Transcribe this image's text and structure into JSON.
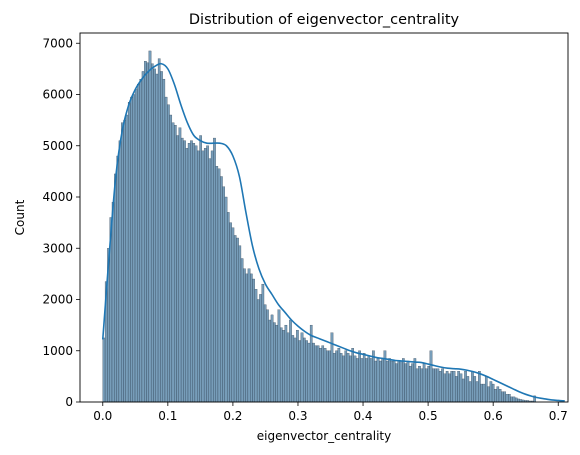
{
  "chart_data": {
    "type": "bar",
    "subtype": "histogram-with-kde",
    "title": "Distribution of eigenvector_centrality",
    "xlabel": "eigenvector_centrality",
    "ylabel": "Count",
    "xlim": [
      -0.035,
      0.715
    ],
    "ylim": [
      0,
      7200
    ],
    "xticks": [
      0.0,
      0.1,
      0.2,
      0.3,
      0.4,
      0.5,
      0.6,
      0.7
    ],
    "xtick_labels": [
      "0.0",
      "0.1",
      "0.2",
      "0.3",
      "0.4",
      "0.5",
      "0.6",
      "0.7"
    ],
    "yticks": [
      0,
      1000,
      2000,
      3000,
      4000,
      5000,
      6000,
      7000
    ],
    "ytick_labels": [
      "0",
      "1000",
      "2000",
      "3000",
      "4000",
      "5000",
      "6000",
      "7000"
    ],
    "grid": false,
    "bin_start": 0.0,
    "bin_width": 0.00354,
    "bar_color": "#5f8cad",
    "bar_edge_color": "#2c3e50",
    "kde_color": "#1f77b4",
    "counts": [
      1250,
      2350,
      3000,
      3600,
      3900,
      4450,
      4800,
      5100,
      5450,
      5500,
      5600,
      5850,
      5950,
      6000,
      6100,
      6200,
      6300,
      6450,
      6650,
      6620,
      6850,
      6600,
      6500,
      6400,
      6700,
      6450,
      6300,
      5950,
      5800,
      5600,
      5450,
      5400,
      5200,
      5350,
      5150,
      5100,
      4950,
      5050,
      5100,
      5050,
      5000,
      4900,
      5200,
      4900,
      4950,
      5000,
      4750,
      4900,
      5150,
      4600,
      4550,
      4400,
      4200,
      4000,
      3700,
      3500,
      3400,
      3250,
      3200,
      3050,
      2800,
      2600,
      2500,
      2600,
      2500,
      2400,
      2200,
      2000,
      2100,
      2300,
      1900,
      1800,
      1600,
      1700,
      1550,
      1500,
      1800,
      1450,
      1400,
      1500,
      1350,
      1600,
      1300,
      1250,
      1400,
      1200,
      1350,
      1250,
      1200,
      1150,
      1500,
      1150,
      1100,
      1100,
      1050,
      1100,
      1050,
      1000,
      1000,
      1350,
      950,
      1000,
      1050,
      950,
      900,
      1000,
      950,
      900,
      1050,
      900,
      850,
      1000,
      850,
      950,
      850,
      900,
      850,
      1000,
      800,
      850,
      800,
      850,
      1000,
      800,
      850,
      800,
      800,
      750,
      800,
      800,
      850,
      750,
      800,
      700,
      750,
      850,
      650,
      700,
      650,
      750,
      650,
      700,
      1000,
      650,
      650,
      650,
      600,
      650,
      550,
      600,
      550,
      600,
      600,
      500,
      600,
      550,
      450,
      600,
      500,
      400,
      600,
      500,
      400,
      600,
      350,
      350,
      500,
      300,
      400,
      350,
      250,
      300,
      250,
      200,
      200,
      150,
      150,
      100,
      100,
      80,
      60,
      50,
      40,
      30,
      30,
      20,
      20,
      120
    ],
    "kde": {
      "x": [
        0.0,
        0.01,
        0.02,
        0.03,
        0.04,
        0.05,
        0.06,
        0.07,
        0.08,
        0.09,
        0.1,
        0.11,
        0.12,
        0.13,
        0.14,
        0.15,
        0.16,
        0.17,
        0.18,
        0.19,
        0.2,
        0.21,
        0.22,
        0.23,
        0.24,
        0.25,
        0.26,
        0.27,
        0.28,
        0.29,
        0.3,
        0.31,
        0.32,
        0.33,
        0.34,
        0.35,
        0.36,
        0.37,
        0.38,
        0.39,
        0.4,
        0.41,
        0.42,
        0.43,
        0.44,
        0.45,
        0.46,
        0.47,
        0.48,
        0.49,
        0.5,
        0.51,
        0.52,
        0.53,
        0.54,
        0.55,
        0.56,
        0.57,
        0.58,
        0.59,
        0.6,
        0.61,
        0.62,
        0.63,
        0.64,
        0.65,
        0.66,
        0.67,
        0.68,
        0.69,
        0.7,
        0.71
      ],
      "y": [
        1220,
        2900,
        4400,
        5300,
        5800,
        6100,
        6300,
        6450,
        6550,
        6600,
        6500,
        6200,
        5800,
        5450,
        5200,
        5100,
        5050,
        5050,
        5050,
        5000,
        4800,
        4400,
        3700,
        3050,
        2600,
        2300,
        2100,
        1900,
        1750,
        1600,
        1480,
        1380,
        1300,
        1250,
        1200,
        1150,
        1100,
        1050,
        1000,
        960,
        930,
        900,
        870,
        850,
        830,
        810,
        800,
        790,
        780,
        770,
        740,
        710,
        680,
        660,
        650,
        640,
        620,
        590,
        550,
        500,
        440,
        380,
        320,
        260,
        200,
        150,
        110,
        80,
        60,
        40,
        30,
        20
      ]
    }
  }
}
